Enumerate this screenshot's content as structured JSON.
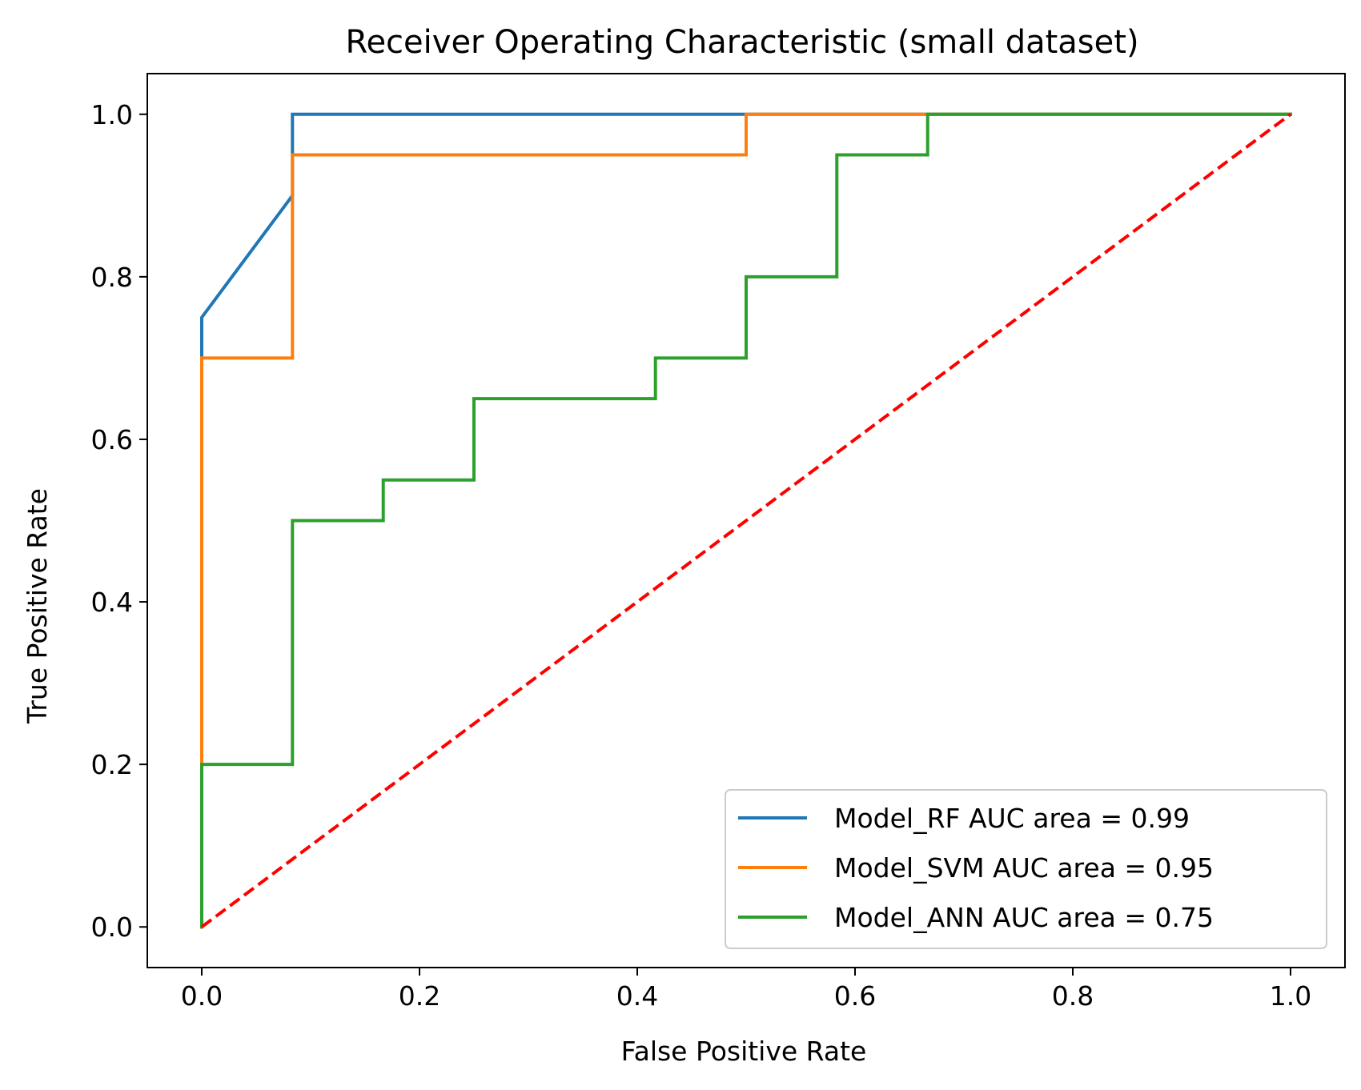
{
  "chart_data": {
    "type": "line",
    "title": "Receiver Operating Characteristic (small dataset)",
    "xlabel": "False Positive Rate",
    "ylabel": "True Positive Rate",
    "xlim": [
      -0.05,
      1.05
    ],
    "ylim": [
      -0.05,
      1.05
    ],
    "x_ticks": [
      "0.0",
      "0.2",
      "0.4",
      "0.6",
      "0.8",
      "1.0"
    ],
    "y_ticks": [
      "0.0",
      "0.2",
      "0.4",
      "0.6",
      "0.8",
      "1.0"
    ],
    "x_tick_values": [
      0.0,
      0.2,
      0.4,
      0.6,
      0.8,
      1.0
    ],
    "y_tick_values": [
      0.0,
      0.2,
      0.4,
      0.6,
      0.8,
      1.0
    ],
    "grid": false,
    "legend_position": "lower-right",
    "series": [
      {
        "name": "Model_RF AUC area = 0.99",
        "color": "#1f77b4",
        "x": [
          0.0,
          0.0,
          0.0,
          0.0833,
          0.0833,
          0.5,
          1.0
        ],
        "y": [
          0.0,
          0.7,
          0.75,
          0.9,
          1.0,
          1.0,
          1.0
        ]
      },
      {
        "name": "Model_SVM AUC area = 0.95",
        "color": "#ff7f0e",
        "x": [
          0.0,
          0.0,
          0.0833,
          0.0833,
          0.5,
          0.5,
          0.6667,
          1.0
        ],
        "y": [
          0.0,
          0.7,
          0.7,
          0.95,
          0.95,
          1.0,
          1.0,
          1.0
        ]
      },
      {
        "name": "Model_ANN AUC area = 0.75",
        "color": "#2ca02c",
        "x": [
          0.0,
          0.0,
          0.0833,
          0.0833,
          0.1667,
          0.1667,
          0.25,
          0.25,
          0.4167,
          0.4167,
          0.5,
          0.5,
          0.5833,
          0.5833,
          0.6667,
          0.6667,
          1.0
        ],
        "y": [
          0.0,
          0.2,
          0.2,
          0.5,
          0.5,
          0.55,
          0.55,
          0.65,
          0.65,
          0.7,
          0.7,
          0.8,
          0.8,
          0.95,
          0.95,
          1.0,
          1.0
        ]
      }
    ],
    "reference_line": {
      "color": "#ff0000",
      "style": "dashed",
      "x": [
        0.0,
        1.0
      ],
      "y": [
        0.0,
        1.0
      ]
    }
  }
}
